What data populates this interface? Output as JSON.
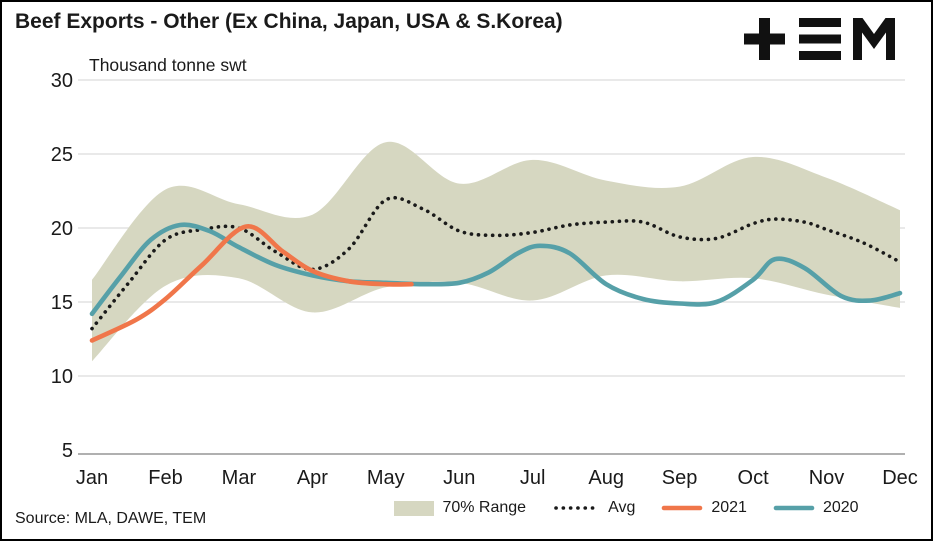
{
  "chart_data": {
    "type": "line",
    "title": "Beef Exports - Other (Ex China, Japan, USA & S.Korea)",
    "unit_caption": "Thousand tonne swt",
    "categories": [
      "Jan",
      "Feb",
      "Mar",
      "Apr",
      "May",
      "Jun",
      "Jul",
      "Aug",
      "Sep",
      "Oct",
      "Nov",
      "Dec"
    ],
    "ylim": [
      5,
      30
    ],
    "yticks": [
      5,
      10,
      15,
      20,
      25,
      30
    ],
    "grid": true,
    "legend_position": "bottom",
    "colors": {
      "grid": "#dcdcdc",
      "axis": "#969696",
      "text": "#1a1a1a"
    },
    "band": {
      "name": "70% Range",
      "color": "#d6d7c1",
      "x": [
        0,
        1,
        2,
        3,
        4,
        5,
        6,
        7,
        8,
        9,
        10,
        11
      ],
      "upper": [
        16.5,
        22.6,
        21.6,
        20.9,
        25.8,
        23.0,
        24.6,
        23.2,
        22.8,
        24.8,
        23.4,
        21.2
      ],
      "lower": [
        11.0,
        16.1,
        16.6,
        14.3,
        16.0,
        16.3,
        15.1,
        16.8,
        16.4,
        16.6,
        15.5,
        14.6
      ]
    },
    "series": [
      {
        "name": "Avg",
        "style": "dotted",
        "color": "#1a1a1a",
        "x": [
          0,
          0.5,
          1,
          1.5,
          2,
          2.5,
          3,
          3.5,
          4,
          4.5,
          5,
          5.5,
          6,
          6.5,
          7,
          7.5,
          8,
          8.5,
          9,
          9.3,
          9.7,
          10,
          10.5,
          11
        ],
        "values": [
          13.2,
          16.3,
          19.2,
          19.9,
          20.0,
          18.4,
          17.2,
          18.6,
          21.9,
          21.3,
          19.8,
          19.5,
          19.7,
          20.2,
          20.4,
          20.4,
          19.4,
          19.3,
          20.3,
          20.6,
          20.4,
          19.9,
          19.0,
          17.7
        ]
      },
      {
        "name": "2021",
        "style": "solid",
        "color": "#f0764a",
        "x": [
          0,
          0.6,
          1,
          1.5,
          2.1,
          2.6,
          3,
          3.5,
          4,
          4.35
        ],
        "values": [
          12.4,
          13.8,
          15.2,
          17.5,
          20.1,
          18.4,
          17.1,
          16.4,
          16.2,
          16.2
        ]
      },
      {
        "name": "2020",
        "style": "solid",
        "color": "#56a0a8",
        "x": [
          0,
          0.4,
          0.8,
          1.2,
          1.6,
          2,
          2.5,
          3,
          3.5,
          4,
          4.5,
          5,
          5.4,
          5.8,
          6.1,
          6.5,
          7,
          7.5,
          8,
          8.5,
          9,
          9.3,
          9.7,
          10.2,
          10.6,
          11
        ],
        "values": [
          14.2,
          16.8,
          19.2,
          20.2,
          19.8,
          18.7,
          17.5,
          16.8,
          16.4,
          16.3,
          16.2,
          16.3,
          17.0,
          18.3,
          18.8,
          18.3,
          16.2,
          15.2,
          14.9,
          15.0,
          16.5,
          17.9,
          17.3,
          15.4,
          15.1,
          15.6
        ]
      }
    ]
  },
  "legend": {
    "range": "70% Range",
    "avg": "Avg",
    "y2021": "2021",
    "y2020": "2020"
  },
  "source": "Source: MLA, DAWE, TEM",
  "logo": {
    "name": "TEM"
  }
}
